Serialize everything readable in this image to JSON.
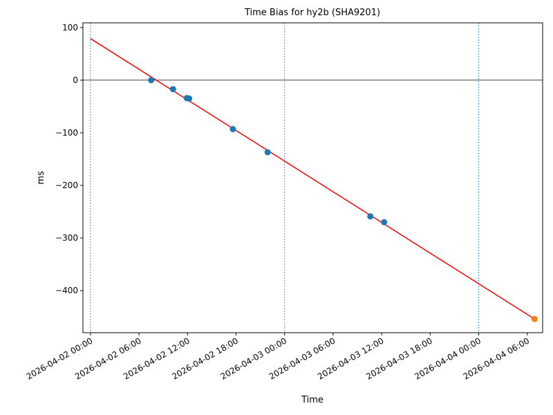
{
  "chart_data": {
    "type": "scatter",
    "title": "Time Bias for hy2b (SHA9201)",
    "x_label": "Time",
    "y_label": "ms",
    "xlim": [
      "2026-04-01 23:04",
      "2026-04-04 07:54"
    ],
    "xticks": [
      "2026-04-02 00:00",
      "2026-04-02 06:00",
      "2026-04-02 12:00",
      "2026-04-02 18:00",
      "2026-04-03 00:00",
      "2026-04-03 06:00",
      "2026-04-03 12:00",
      "2026-04-03 18:00",
      "2026-04-04 00:00",
      "2026-04-04 06:00"
    ],
    "ylim": [
      -480,
      109
    ],
    "yticks": [
      {
        "value": -400,
        "label": "−400"
      },
      {
        "value": -300,
        "label": "−300"
      },
      {
        "value": -200,
        "label": "−200"
      },
      {
        "value": -100,
        "label": "−100"
      },
      0,
      100
    ],
    "vlines": [
      "2026-04-02 00:00",
      "2026-04-03 00:00",
      "2026-04-04 00:00"
    ],
    "vline_color": "#1f77b4",
    "hline": 0,
    "series": [
      {
        "mode": "line",
        "color": "#ff0000",
        "x": [
          "2026-04-02 00:00",
          "2026-04-04 06:54"
        ],
        "values": [
          79,
          -454
        ]
      },
      {
        "mode": "markers",
        "color": "#1f77b4",
        "x": [
          "2026-04-02 07:30",
          "2026-04-02 10:12",
          "2026-04-02 11:54",
          "2026-04-02 12:12",
          "2026-04-02 17:36",
          "2026-04-02 21:54",
          "2026-04-03 10:36",
          "2026-04-03 12:18"
        ],
        "values": [
          0,
          -17,
          -34,
          -35,
          -93,
          -137,
          -259,
          -270
        ]
      },
      {
        "mode": "markers",
        "color": "#ff7f0e",
        "x": [
          "2026-04-04 06:54"
        ],
        "values": [
          -454
        ]
      }
    ]
  }
}
